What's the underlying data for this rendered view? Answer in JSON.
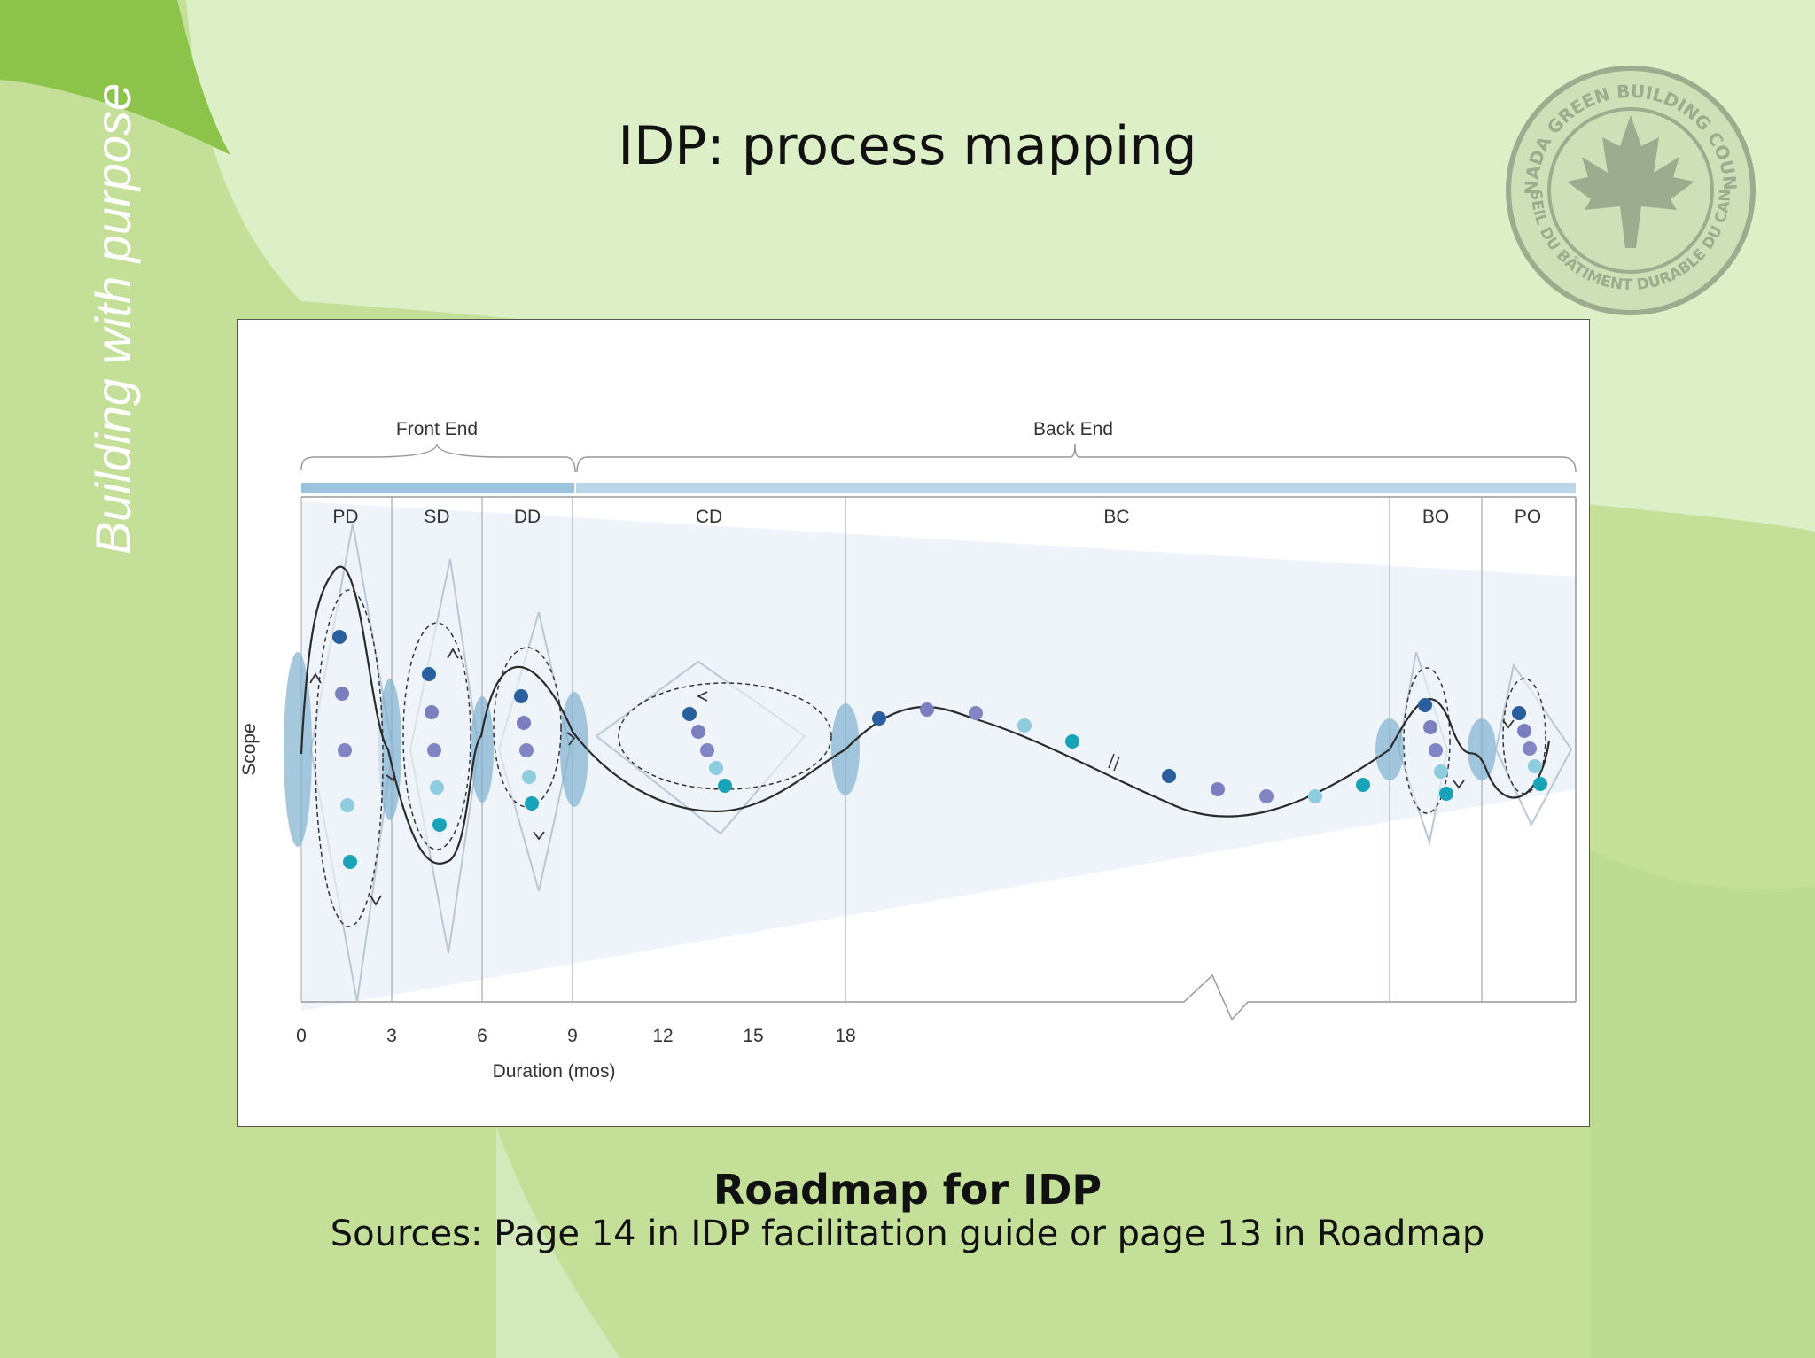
{
  "slide": {
    "tagline": "Building  with purpose",
    "title": "IDP: process mapping",
    "caption": "Roadmap for IDP",
    "sources": "Sources: Page 14 in IDP facilitation guide or page 13 in Roadmap",
    "logo_text_top": "CANADA GREEN BUILDING COUNCIL",
    "logo_text_bottom": "CONSEIL DU BÂTIMENT DURABLE DU CANADA"
  },
  "diagram": {
    "groups": [
      {
        "label": "Front End"
      },
      {
        "label": "Back End"
      }
    ],
    "phases": [
      "PD",
      "SD",
      "DD",
      "CD",
      "BC",
      "BO",
      "PO"
    ],
    "y_axis_label": "Scope",
    "x_axis_label": "Duration (mos)",
    "x_ticks": [
      "0",
      "3",
      "6",
      "9",
      "12",
      "15",
      "18"
    ],
    "colors": {
      "band": "#9cc3de",
      "dot_dark": "#2a5f9e",
      "dot_mid": "#7b7fbf",
      "dot_light": "#8ecde0",
      "dot_teal": "#19a3b8",
      "lens": "#7fb0cf"
    }
  }
}
